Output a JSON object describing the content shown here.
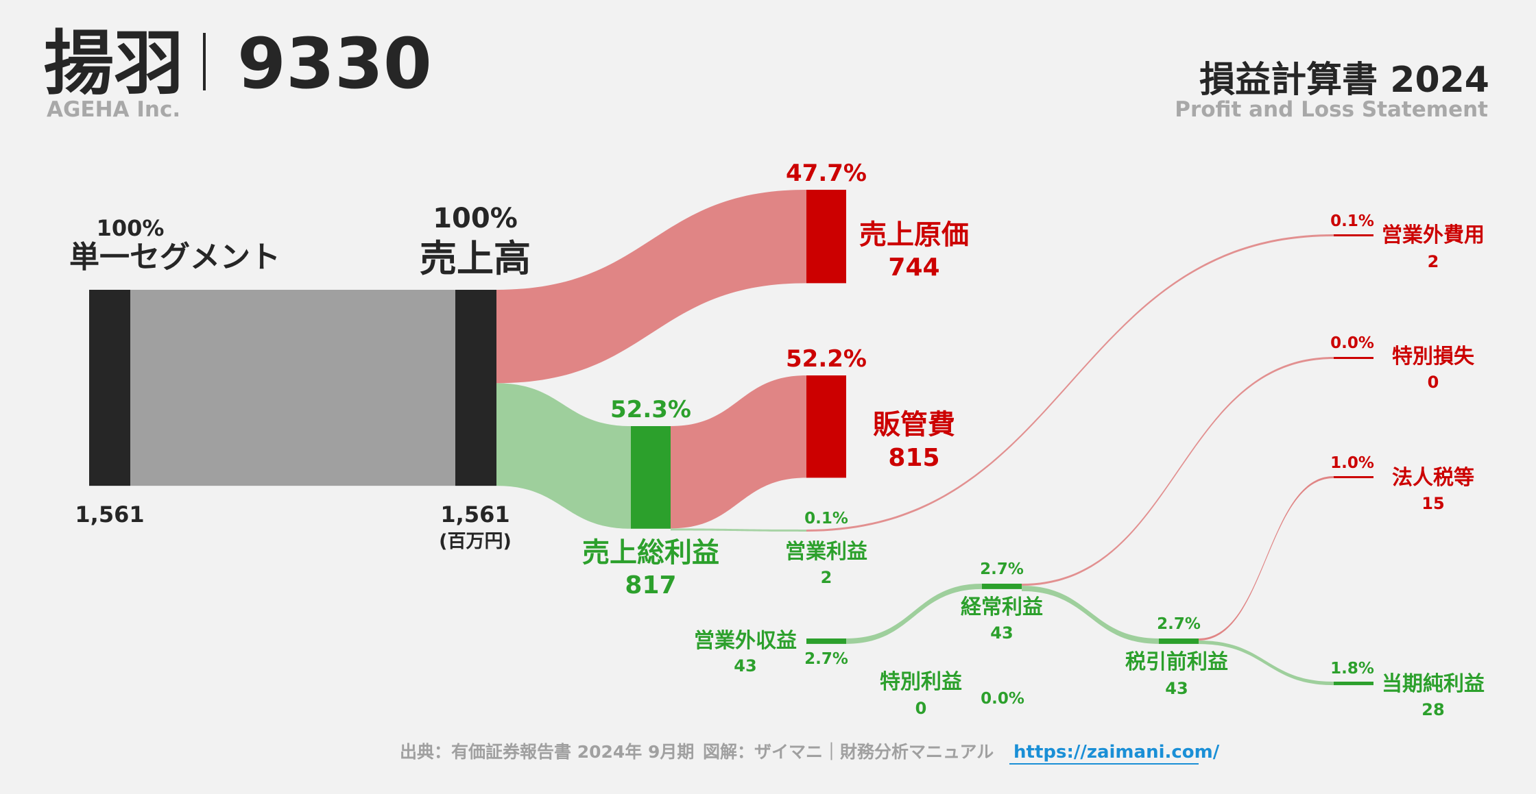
{
  "header": {
    "company_jp": "揚羽",
    "ticker": "9330",
    "company_en": "AGEHA Inc.",
    "statement_jp": "損益計算書 2024",
    "statement_en": "Profit and Loss Statement"
  },
  "footer": {
    "source": "出典：有価証券報告書 2024年 9月期",
    "credit": "図解：ザイマニ｜財務分析マニュアル",
    "link": "https://zaimani.com/"
  },
  "colors": {
    "dark": "#262626",
    "gray_flow": "#a0a0a0",
    "cost_node": "#cc0000",
    "cost_flow": "#e08585",
    "profit_node": "#2ca02c",
    "profit_flow": "#9ecf9c",
    "accent_link": "#1a8fd6"
  },
  "chart_data": {
    "type": "sankey",
    "unit": "(百万円)",
    "nodes": [
      {
        "id": "segment",
        "label": "単一セグメント",
        "value": 1561,
        "value_label": "1,561",
        "pct": "100%"
      },
      {
        "id": "revenue",
        "label": "売上高",
        "value": 1561,
        "value_label": "1,561",
        "pct": "100%"
      },
      {
        "id": "cogs",
        "label": "売上原価",
        "value": 744,
        "value_label": "744",
        "pct": "47.7%"
      },
      {
        "id": "gross",
        "label": "売上総利益",
        "value": 817,
        "value_label": "817",
        "pct": "52.3%"
      },
      {
        "id": "sga",
        "label": "販管費",
        "value": 815,
        "value_label": "815",
        "pct": "52.2%"
      },
      {
        "id": "op",
        "label": "営業利益",
        "value": 2,
        "value_label": "2",
        "pct": "0.1%"
      },
      {
        "id": "nonop_inc",
        "label": "営業外収益",
        "value": 43,
        "value_label": "43",
        "pct": "2.7%"
      },
      {
        "id": "nonop_exp",
        "label": "営業外費用",
        "value": 2,
        "value_label": "2",
        "pct": "0.1%"
      },
      {
        "id": "ordinary",
        "label": "経常利益",
        "value": 43,
        "value_label": "43",
        "pct": "2.7%"
      },
      {
        "id": "ext_gain",
        "label": "特別利益",
        "value": 0,
        "value_label": "0",
        "pct": "0.0%"
      },
      {
        "id": "ext_loss",
        "label": "特別損失",
        "value": 0,
        "value_label": "0",
        "pct": "0.0%"
      },
      {
        "id": "pretax",
        "label": "税引前利益",
        "value": 43,
        "value_label": "43",
        "pct": "2.7%"
      },
      {
        "id": "tax",
        "label": "法人税等",
        "value": 15,
        "value_label": "15",
        "pct": "1.0%"
      },
      {
        "id": "net",
        "label": "当期純利益",
        "value": 28,
        "value_label": "28",
        "pct": "1.8%"
      }
    ],
    "links": [
      {
        "source": "segment",
        "target": "revenue",
        "value": 1561
      },
      {
        "source": "revenue",
        "target": "cogs",
        "value": 744
      },
      {
        "source": "revenue",
        "target": "gross",
        "value": 817
      },
      {
        "source": "gross",
        "target": "sga",
        "value": 815
      },
      {
        "source": "gross",
        "target": "op",
        "value": 2
      },
      {
        "source": "op",
        "target": "nonop_exp",
        "value": 2
      },
      {
        "source": "nonop_inc",
        "target": "ordinary",
        "value": 43
      },
      {
        "source": "ordinary",
        "target": "ext_loss",
        "value": 0
      },
      {
        "source": "ordinary",
        "target": "pretax",
        "value": 43
      },
      {
        "source": "pretax",
        "target": "tax",
        "value": 15
      },
      {
        "source": "pretax",
        "target": "net",
        "value": 28
      }
    ]
  }
}
